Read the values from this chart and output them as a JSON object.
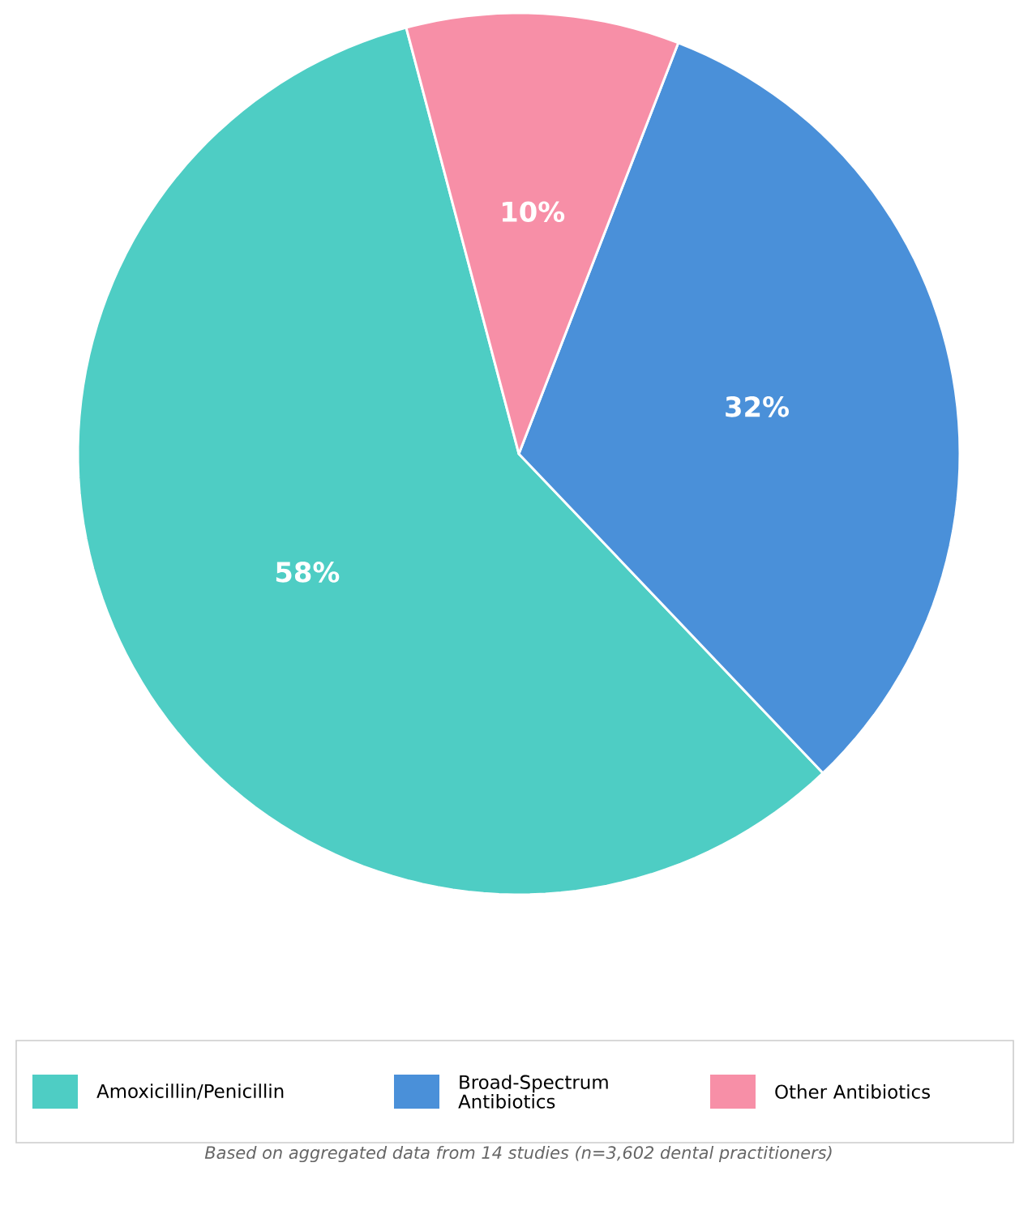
{
  "chart_data": {
    "type": "pie",
    "categories": [
      "Amoxicillin/Penicillin",
      "Broad-Spectrum Antibiotics",
      "Other Antibiotics"
    ],
    "values": [
      58,
      32,
      10
    ],
    "colors": [
      "#4ecdc4",
      "#4a90d9",
      "#f78fa7"
    ],
    "value_labels": [
      "58%",
      "32%",
      "10%"
    ],
    "legend": "bottom",
    "annotations": [
      "Based on aggregated data from 14 studies (n=3,602 dental practitioners)"
    ]
  }
}
